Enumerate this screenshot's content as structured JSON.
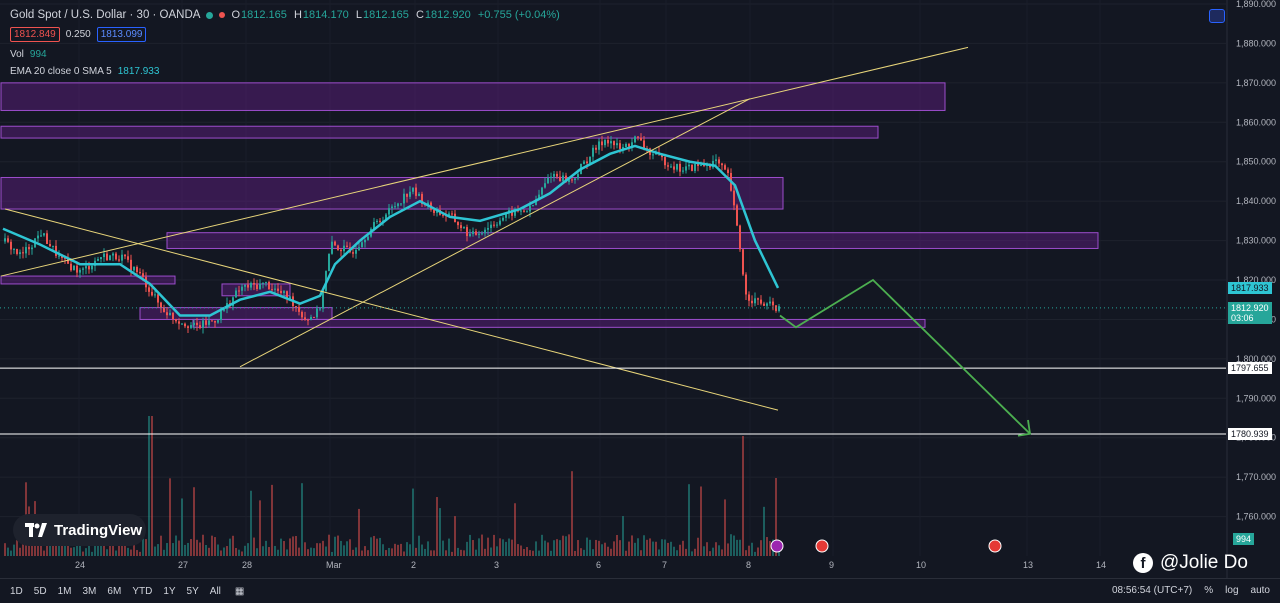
{
  "header": {
    "title": "Gold Spot / U.S. Dollar · 30 · OANDA",
    "open_label": "O",
    "open": "1812.165",
    "high_label": "H",
    "high": "1814.170",
    "low_label": "L",
    "low": "1812.165",
    "close_label": "C",
    "close": "1812.920",
    "change": "+0.755 (+0.04%)",
    "sell": "1812.849",
    "spread": "0.250",
    "buy": "1813.099",
    "vol_label": "Vol",
    "vol_value": "994",
    "ema_label": "EMA 20 close 0 SMA 5",
    "ema_value": "1817.933"
  },
  "colors": {
    "bg": "#131722",
    "up": "#26a69a",
    "down": "#ef5350",
    "ema": "#2ec5d3",
    "zone": "#7b1fa2",
    "trend": "#e8d57a",
    "projection": "#4caf50"
  },
  "chart_data": {
    "type": "candlestick",
    "symbol": "XAUUSD",
    "timeframe": "30",
    "ylim": [
      1755,
      1890
    ],
    "y_ticks": [
      1890,
      1880,
      1870,
      1860,
      1850,
      1840,
      1830,
      1820,
      1810,
      1800,
      1790,
      1780,
      1770,
      1760
    ],
    "x_ticks": [
      "24",
      "27",
      "28",
      "Mar",
      "2",
      "3",
      "6",
      "7",
      "8",
      "9",
      "10",
      "13",
      "14"
    ],
    "last_price": 1812.92,
    "countdown": "03:06",
    "ema_last": 1817.933,
    "volume_last": 994,
    "horizontal_levels": [
      1797.655,
      1780.939
    ],
    "zones": [
      {
        "x": [
          1,
          945
        ],
        "y": [
          1870,
          1863
        ]
      },
      {
        "x": [
          1,
          878
        ],
        "y": [
          1859,
          1856
        ]
      },
      {
        "x": [
          1,
          783
        ],
        "y": [
          1846,
          1838
        ]
      },
      {
        "x": [
          167,
          1098
        ],
        "y": [
          1832,
          1828
        ]
      },
      {
        "x": [
          1,
          175
        ],
        "y": [
          1821,
          1819
        ]
      },
      {
        "x": [
          222,
          290
        ],
        "y": [
          1819,
          1816
        ]
      },
      {
        "x": [
          140,
          332
        ],
        "y": [
          1813,
          1810
        ]
      },
      {
        "x": [
          193,
          925
        ],
        "y": [
          1810,
          1808
        ]
      }
    ],
    "trendlines": [
      {
        "x1": 1,
        "y1": 1821,
        "x2": 968,
        "y2": 1879
      },
      {
        "x1": 240,
        "y1": 1798,
        "x2": 750,
        "y2": 1866
      },
      {
        "x1": 5,
        "y1": 1838,
        "x2": 778,
        "y2": 1787
      }
    ],
    "projection": [
      [
        780,
        1811
      ],
      [
        796,
        1808
      ],
      [
        873,
        1820
      ],
      [
        1030,
        1781
      ]
    ],
    "price_path": [
      [
        3,
        1830
      ],
      [
        20,
        1826
      ],
      [
        40,
        1832
      ],
      [
        60,
        1825
      ],
      [
        80,
        1822
      ],
      [
        100,
        1826
      ],
      [
        120,
        1826
      ],
      [
        140,
        1821
      ],
      [
        160,
        1813
      ],
      [
        175,
        1810
      ],
      [
        195,
        1808
      ],
      [
        215,
        1810
      ],
      [
        240,
        1818
      ],
      [
        265,
        1819
      ],
      [
        290,
        1815
      ],
      [
        305,
        1810
      ],
      [
        318,
        1812
      ],
      [
        330,
        1829
      ],
      [
        350,
        1827
      ],
      [
        370,
        1833
      ],
      [
        390,
        1838
      ],
      [
        410,
        1843
      ],
      [
        430,
        1838
      ],
      [
        450,
        1836
      ],
      [
        470,
        1831
      ],
      [
        490,
        1834
      ],
      [
        510,
        1837
      ],
      [
        530,
        1838
      ],
      [
        550,
        1847
      ],
      [
        570,
        1845
      ],
      [
        590,
        1852
      ],
      [
        605,
        1856
      ],
      [
        620,
        1853
      ],
      [
        635,
        1856
      ],
      [
        650,
        1852
      ],
      [
        665,
        1850
      ],
      [
        680,
        1848
      ],
      [
        700,
        1849
      ],
      [
        715,
        1850
      ],
      [
        728,
        1846
      ],
      [
        738,
        1830
      ],
      [
        745,
        1816
      ],
      [
        760,
        1814
      ],
      [
        778,
        1812.9
      ]
    ],
    "ema_path": [
      [
        3,
        1833
      ],
      [
        40,
        1829
      ],
      [
        80,
        1824
      ],
      [
        120,
        1824
      ],
      [
        150,
        1819
      ],
      [
        180,
        1811
      ],
      [
        210,
        1811
      ],
      [
        240,
        1815
      ],
      [
        270,
        1817
      ],
      [
        300,
        1814
      ],
      [
        320,
        1816
      ],
      [
        335,
        1824
      ],
      [
        360,
        1830
      ],
      [
        390,
        1836
      ],
      [
        420,
        1840
      ],
      [
        450,
        1836
      ],
      [
        480,
        1835
      ],
      [
        520,
        1838
      ],
      [
        550,
        1842
      ],
      [
        580,
        1848
      ],
      [
        610,
        1852
      ],
      [
        635,
        1854
      ],
      [
        660,
        1852
      ],
      [
        690,
        1850
      ],
      [
        715,
        1849
      ],
      [
        735,
        1844
      ],
      [
        755,
        1830
      ],
      [
        778,
        1818
      ]
    ]
  },
  "axis_labels": {
    "l1797": "1797.655",
    "l1780": "1780.939",
    "ema": "1817.933",
    "last": "1812.920",
    "countdown": "03:06",
    "vol": "994"
  },
  "bottom": {
    "timeframes": [
      "1D",
      "5D",
      "1M",
      "3M",
      "6M",
      "YTD",
      "1Y",
      "5Y",
      "All"
    ],
    "clock": "08:56:54 (UTC+7)",
    "percent": "%",
    "log": "log",
    "auto": "auto"
  },
  "logo_text": "TradingView",
  "watermark": "@Jolie Do"
}
